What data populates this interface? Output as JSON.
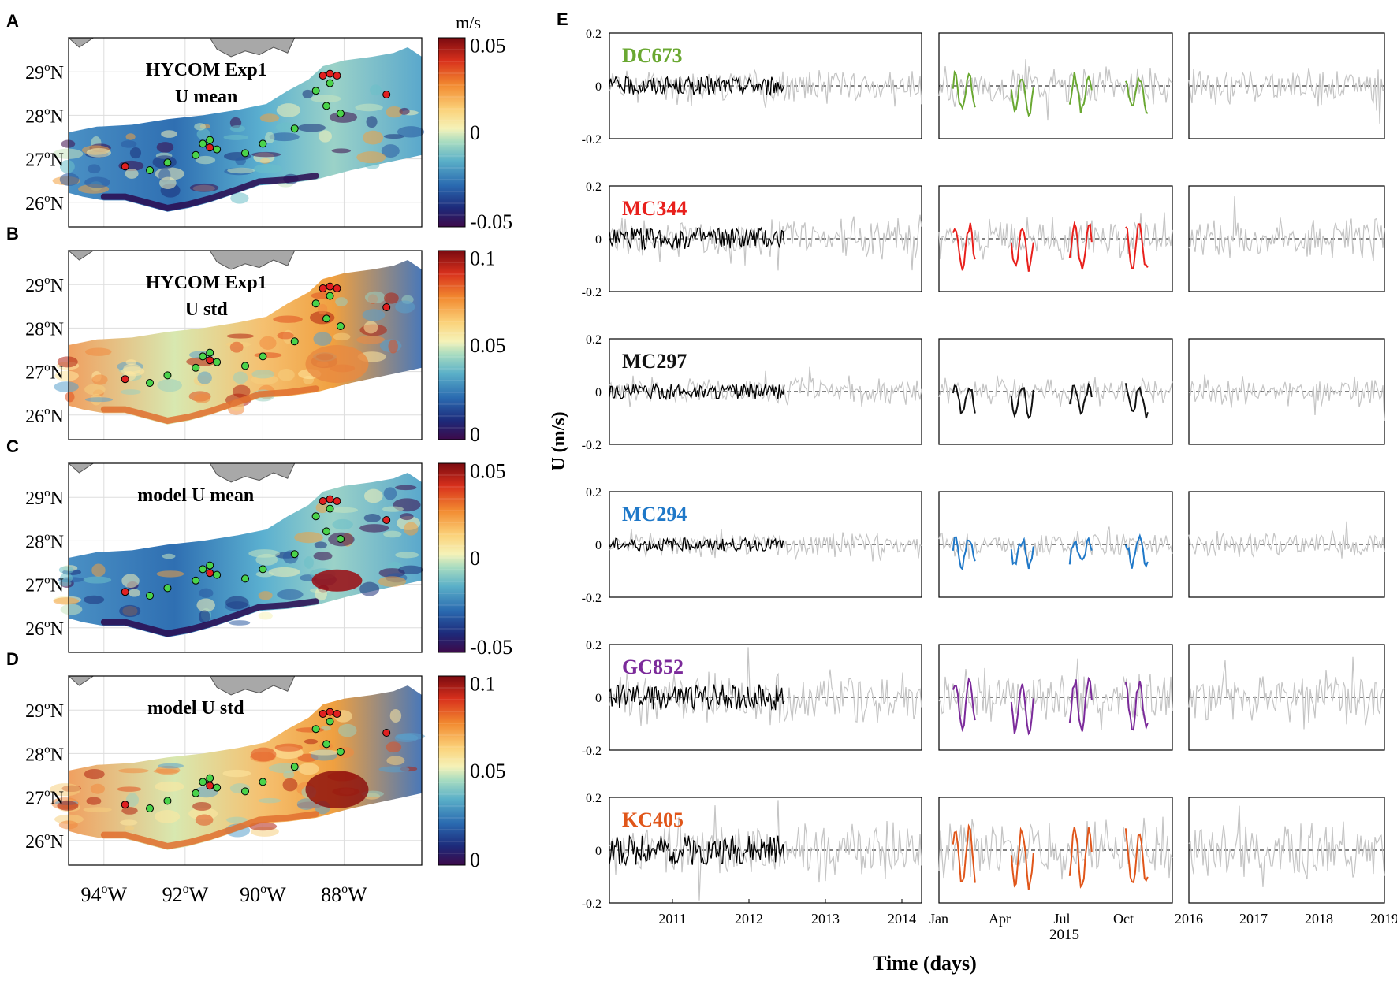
{
  "panel_letters": [
    "A",
    "B",
    "C",
    "D",
    "E"
  ],
  "maps": [
    {
      "letter": "A",
      "title_lines": [
        "HYCOM Exp1",
        "U mean"
      ],
      "colorbar": {
        "unit": "m/s",
        "ticks": [
          "0.05",
          "0",
          "-0.05"
        ],
        "range": [
          -0.05,
          0.05
        ]
      }
    },
    {
      "letter": "B",
      "title_lines": [
        "HYCOM Exp1",
        "U std"
      ],
      "colorbar": {
        "unit": "",
        "ticks": [
          "0.1",
          "0.05",
          "0"
        ],
        "range": [
          0,
          0.1
        ]
      }
    },
    {
      "letter": "C",
      "title_lines": [
        "model U mean"
      ],
      "colorbar": {
        "unit": "",
        "ticks": [
          "0.05",
          "0",
          "-0.05"
        ],
        "range": [
          -0.05,
          0.05
        ]
      }
    },
    {
      "letter": "D",
      "title_lines": [
        "model U std"
      ],
      "colorbar": {
        "unit": "",
        "ticks": [
          "0.1",
          "0.05",
          "0"
        ],
        "range": [
          0,
          0.1
        ]
      }
    }
  ],
  "map_axes": {
    "lat_ticks": [
      "29",
      "28",
      "27",
      "26"
    ],
    "lat_suffix": "N",
    "lon_ticks": [
      "94",
      "92",
      "90",
      "88"
    ],
    "lon_suffix": "W"
  },
  "chart_data": {
    "type": "line",
    "ylabel": "U (m/s)",
    "xlabel": "Time (days)",
    "ylim": [
      -0.2,
      0.2
    ],
    "yticks": [
      "0.2",
      "0",
      "-0.2"
    ],
    "xticks_left": [
      "2011",
      "2012",
      "2013",
      "2014"
    ],
    "xticks_mid": [
      "Jan",
      "Apr",
      "Jul",
      "Oct"
    ],
    "xticks_right": [
      "2016",
      "2017",
      "2018",
      "2019"
    ],
    "mid_year_label": "2015",
    "stations": [
      {
        "name": "DC673",
        "color": "#6aa832"
      },
      {
        "name": "MC344",
        "color": "#e8201c"
      },
      {
        "name": "MC297",
        "color": "#111111"
      },
      {
        "name": "MC294",
        "color": "#1f78c8"
      },
      {
        "name": "GC852",
        "color": "#7b2a9a"
      },
      {
        "name": "KC405",
        "color": "#e0561a"
      }
    ]
  },
  "colors": {
    "gray_series": "#c4c4c4",
    "black_series": "#000000",
    "land": "#a8a8a8"
  }
}
